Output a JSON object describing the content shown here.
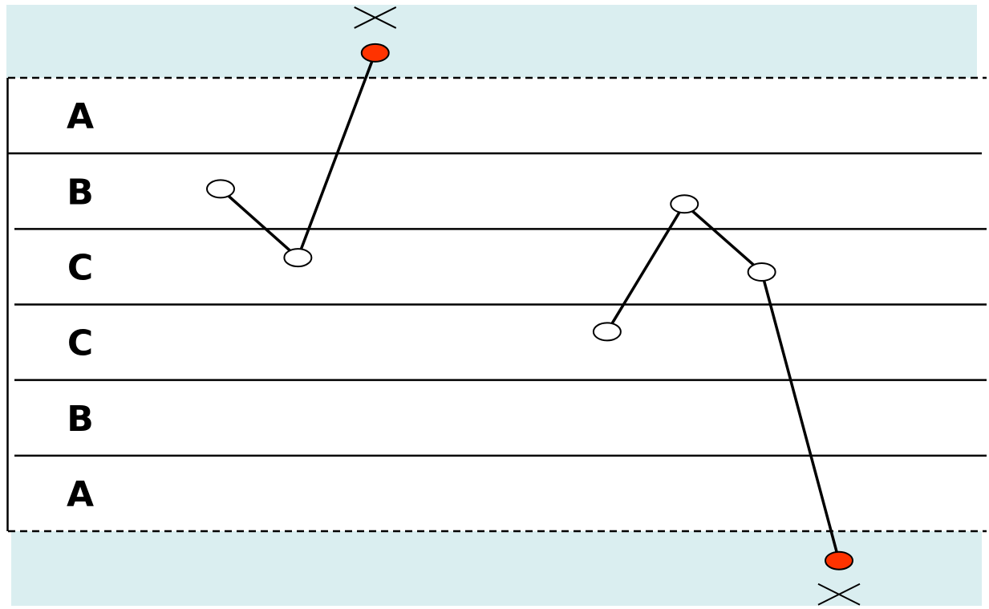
{
  "chart_data": {
    "type": "line",
    "zones": [
      "A",
      "B",
      "C",
      "C",
      "B",
      "A"
    ],
    "ylim": [
      -3.6,
      3.6
    ],
    "zone_boundaries": [
      -3,
      -2,
      -1,
      0,
      1,
      2,
      3
    ],
    "grid": true,
    "series": [
      {
        "values": [
          {
            "x": 1,
            "y": 1.53
          },
          {
            "x": 2,
            "y": 0.62
          },
          {
            "x": 3,
            "y": 3.33
          }
        ]
      },
      {
        "values": [
          {
            "x": 6,
            "y": -0.36
          },
          {
            "x": 7,
            "y": 1.33
          },
          {
            "x": 8,
            "y": 0.43
          },
          {
            "x": 9,
            "y": -3.39
          }
        ]
      }
    ],
    "xlim": [
      -2,
      11
    ],
    "out_of_control_points": [
      {
        "x": 3,
        "y": 3.33
      },
      {
        "x": 9,
        "y": -3.39
      }
    ]
  },
  "colors": {
    "out_of_control_band": "#daeef0",
    "out_of_control_point": "#ff3300",
    "in_control_point": "#ffffff",
    "line": "#000000"
  },
  "icons": {
    "violation_marker": "x-cross-icon"
  }
}
